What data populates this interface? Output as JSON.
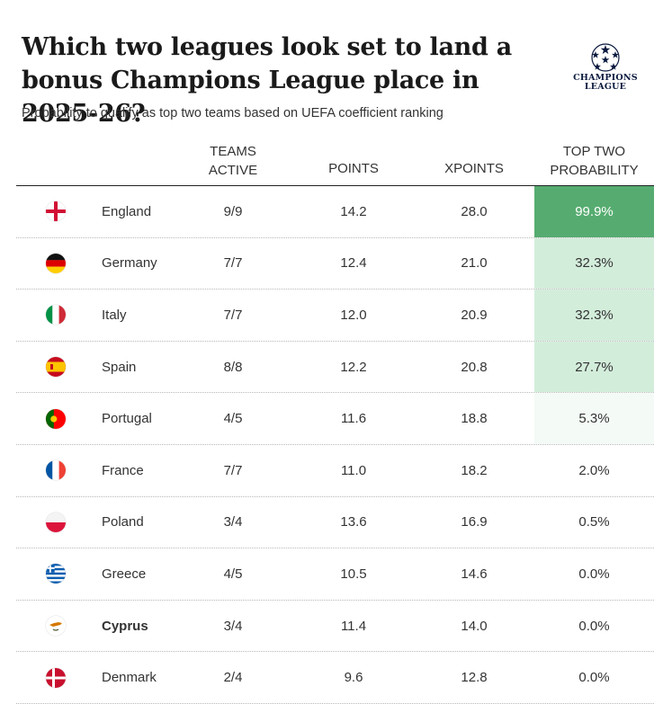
{
  "title": "Which two leagues look set to land a bonus Champions League place in 2025-26?",
  "subtitle": "Probability to qualify as top two teams based on UEFA coefficient ranking",
  "logo": {
    "line1": "CHAMPIONS",
    "line2": "LEAGUE",
    "icon": "star-ball-icon"
  },
  "columns": {
    "teams_active": [
      "TEAMS",
      "ACTIVE"
    ],
    "points": "POINTS",
    "xpoints": "XPOINTS",
    "probability": [
      "TOP TWO",
      "PROBABILITY"
    ]
  },
  "colors": {
    "accent_strong": "#56ac70",
    "accent_light": "#d3eddb",
    "accent_faint": "#f4faf6",
    "header_rule": "#222222"
  },
  "chart_data": {
    "type": "table",
    "title": "Which two leagues look set to land a bonus Champions League place in 2025-26?",
    "subtitle": "Probability to qualify as top two teams based on UEFA coefficient ranking",
    "columns": [
      "",
      "TEAMS ACTIVE",
      "POINTS",
      "XPOINTS",
      "TOP TWO PROBABILITY"
    ],
    "rows": [
      {
        "country": "England",
        "flag": "england-flag-icon",
        "teams": "9/9",
        "points": "14.2",
        "xpoints": "28.0",
        "prob": "99.9%",
        "prob_value": 99.9
      },
      {
        "country": "Germany",
        "flag": "germany-flag-icon",
        "teams": "7/7",
        "points": "12.4",
        "xpoints": "21.0",
        "prob": "32.3%",
        "prob_value": 32.3
      },
      {
        "country": "Italy",
        "flag": "italy-flag-icon",
        "teams": "7/7",
        "points": "12.0",
        "xpoints": "20.9",
        "prob": "32.3%",
        "prob_value": 32.3
      },
      {
        "country": "Spain",
        "flag": "spain-flag-icon",
        "teams": "8/8",
        "points": "12.2",
        "xpoints": "20.8",
        "prob": "27.7%",
        "prob_value": 27.7
      },
      {
        "country": "Portugal",
        "flag": "portugal-flag-icon",
        "teams": "4/5",
        "points": "11.6",
        "xpoints": "18.8",
        "prob": "5.3%",
        "prob_value": 5.3
      },
      {
        "country": "France",
        "flag": "france-flag-icon",
        "teams": "7/7",
        "points": "11.0",
        "xpoints": "18.2",
        "prob": "2.0%",
        "prob_value": 2.0
      },
      {
        "country": "Poland",
        "flag": "poland-flag-icon",
        "teams": "3/4",
        "points": "13.6",
        "xpoints": "16.9",
        "prob": "0.5%",
        "prob_value": 0.5
      },
      {
        "country": "Greece",
        "flag": "greece-flag-icon",
        "teams": "4/5",
        "points": "10.5",
        "xpoints": "14.6",
        "prob": "0.0%",
        "prob_value": 0.0
      },
      {
        "country": "Cyprus",
        "flag": "cyprus-flag-icon",
        "teams": "3/4",
        "points": "11.4",
        "xpoints": "14.0",
        "prob": "0.0%",
        "prob_value": 0.0
      },
      {
        "country": "Denmark",
        "flag": "denmark-flag-icon",
        "teams": "2/4",
        "points": "9.6",
        "xpoints": "12.8",
        "prob": "0.0%",
        "prob_value": 0.0
      }
    ]
  }
}
